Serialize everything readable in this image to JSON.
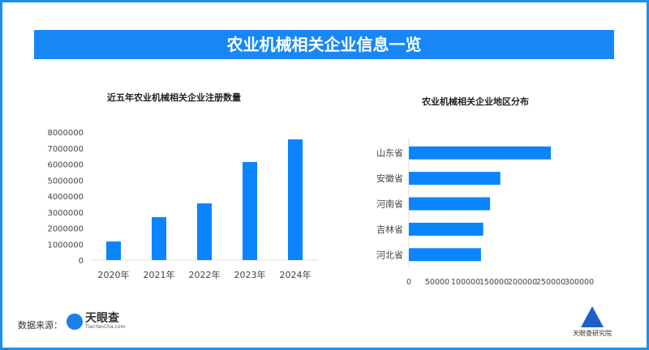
{
  "title": "农业机械相关企业信息一览",
  "source_label": "数据来源：",
  "source_logo": {
    "name": "天眼查",
    "sub": "TianYanCha.com"
  },
  "institute": "天眼查研究院",
  "colors": {
    "bar": "#0a84ff",
    "banner": "#1787f5",
    "border": "#1b8ff0"
  },
  "chart_data": [
    {
      "type": "bar",
      "title": "近五年农业机械相关企业注册数量",
      "categories": [
        "2020年",
        "2021年",
        "2022年",
        "2023年",
        "2024年"
      ],
      "values": [
        1160000,
        2680000,
        3540000,
        6130000,
        7540000
      ],
      "ylim": [
        0,
        8000000
      ],
      "yticks": [
        "0",
        "1000000",
        "2000000",
        "3000000",
        "4000000",
        "5000000",
        "6000000",
        "7000000",
        "8000000"
      ],
      "grid": false
    },
    {
      "type": "bar",
      "orientation": "horizontal",
      "title": "农业机械相关企业地区分布",
      "categories": [
        "山东省",
        "安徽省",
        "河南省",
        "吉林省",
        "河北省"
      ],
      "values": [
        250000,
        161000,
        143000,
        131000,
        127000
      ],
      "xlim": [
        0,
        300000
      ],
      "xticks": [
        "0",
        "50000",
        "100000",
        "150000",
        "200000",
        "250000",
        "300000"
      ],
      "grid": false
    }
  ]
}
